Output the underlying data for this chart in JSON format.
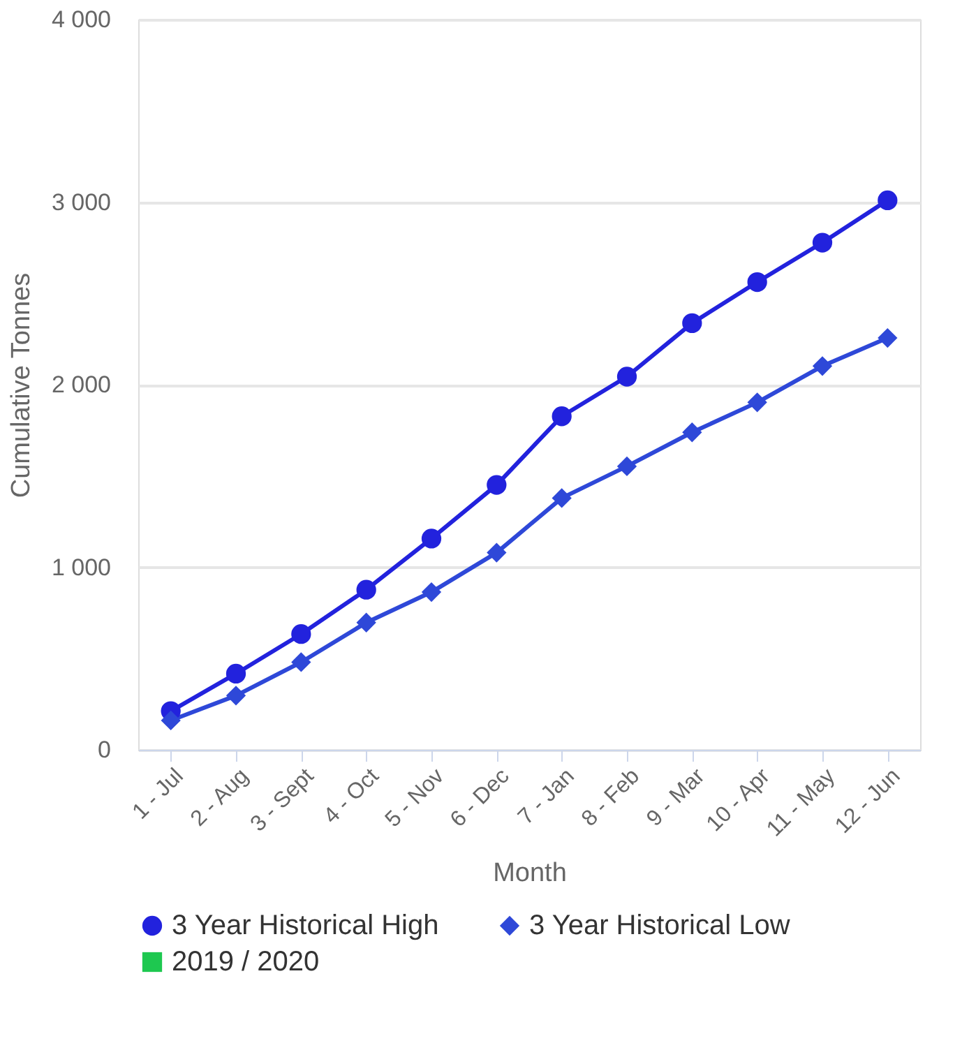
{
  "chart_data": {
    "type": "line",
    "xlabel": "Month",
    "ylabel": "Cumulative Tonnes",
    "categories": [
      "1 - Jul",
      "2 - Aug",
      "3 - Sept",
      "4 - Oct",
      "5 - Nov",
      "6 - Dec",
      "7 - Jan",
      "8 - Feb",
      "9 - Mar",
      "10 - Apr",
      "11 - May",
      "12 - Jun"
    ],
    "series": [
      {
        "name": "3 Year Historical High",
        "color": "#2222dd",
        "marker": "circle",
        "values": [
          212,
          417,
          634,
          877,
          1157,
          1451,
          1827,
          2044,
          2337,
          2562,
          2778,
          3010
        ]
      },
      {
        "name": "3 Year Historical Low",
        "color": "#2e48d8",
        "marker": "diamond",
        "values": [
          161,
          297,
          480,
          697,
          864,
          1080,
          1379,
          1553,
          1739,
          1903,
          2102,
          2256
        ]
      },
      {
        "name": "2019 / 2020",
        "color": "#1ec850",
        "marker": "square",
        "values": [
          null,
          null,
          null,
          null,
          null,
          null,
          null,
          null,
          null,
          null,
          null,
          null
        ]
      }
    ],
    "ylim": [
      0,
      4000
    ],
    "yticks": [
      {
        "value": 0,
        "label": "0"
      },
      {
        "value": 1000,
        "label": "1 000"
      },
      {
        "value": 2000,
        "label": "2 000"
      },
      {
        "value": 3000,
        "label": "3 000"
      },
      {
        "value": 4000,
        "label": "4 000"
      }
    ],
    "grid": "y",
    "legend": "bottom",
    "line_style": "solid"
  }
}
